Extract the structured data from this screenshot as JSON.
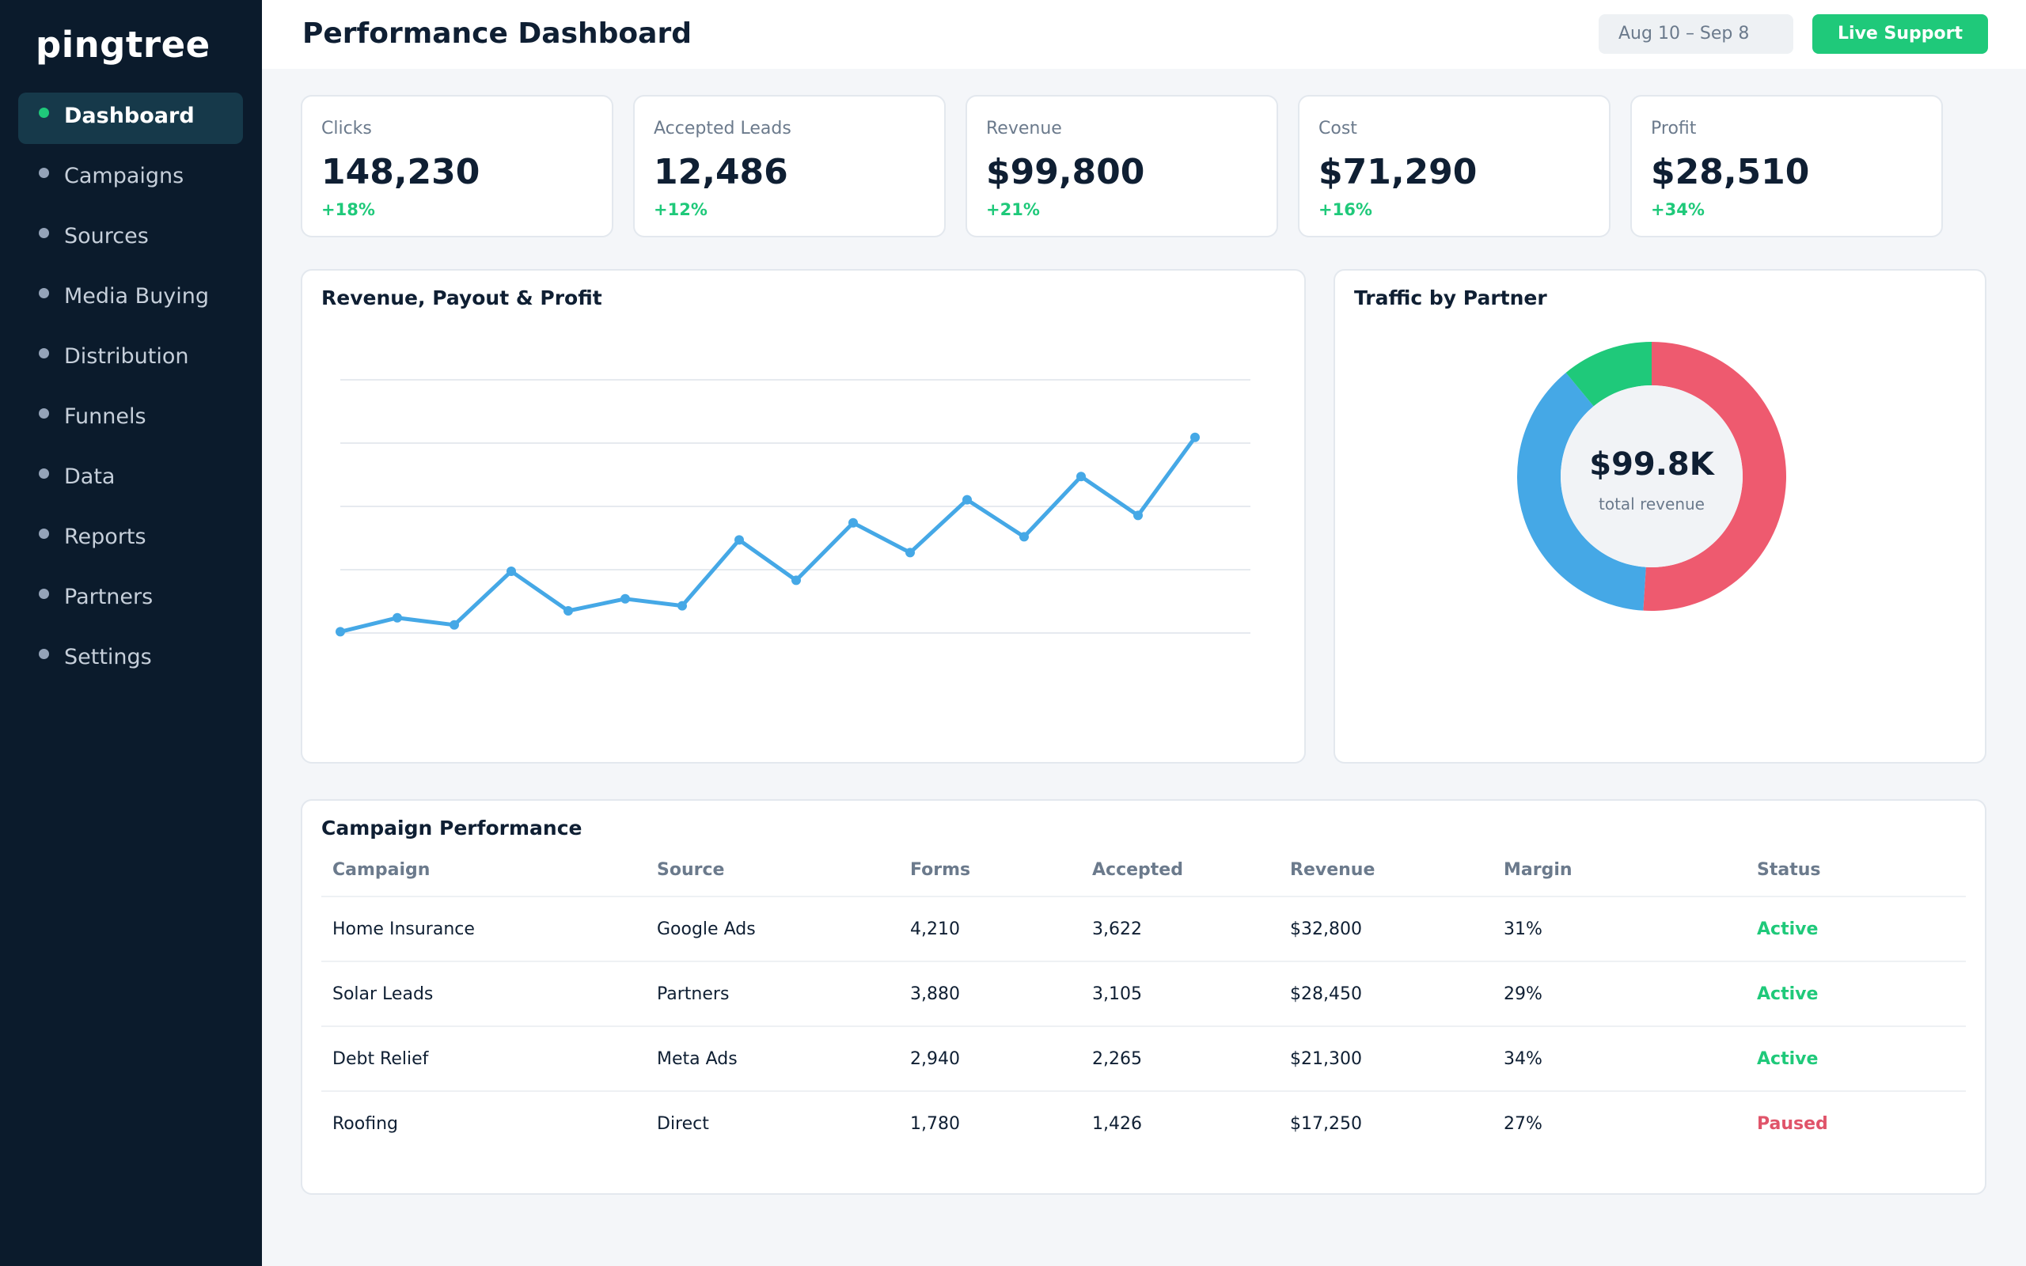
{
  "app": {
    "logo": "pingtree"
  },
  "sidebar": {
    "items": [
      {
        "label": "Dashboard",
        "active": true
      },
      {
        "label": "Campaigns"
      },
      {
        "label": "Sources"
      },
      {
        "label": "Media Buying"
      },
      {
        "label": "Distribution"
      },
      {
        "label": "Funnels"
      },
      {
        "label": "Data"
      },
      {
        "label": "Reports"
      },
      {
        "label": "Partners"
      },
      {
        "label": "Settings"
      }
    ]
  },
  "header": {
    "title": "Performance Dashboard",
    "date_range": "Aug 10 – Sep 8",
    "support_label": "Live Support"
  },
  "kpis": [
    {
      "label": "Clicks",
      "value": "148,230",
      "delta": "+18%"
    },
    {
      "label": "Accepted Leads",
      "value": "12,486",
      "delta": "+12%"
    },
    {
      "label": "Revenue",
      "value": "$99,800",
      "delta": "+21%"
    },
    {
      "label": "Cost",
      "value": "$71,290",
      "delta": "+16%"
    },
    {
      "label": "Profit",
      "value": "$28,510",
      "delta": "+34%"
    }
  ],
  "chart_data": [
    {
      "type": "line",
      "title": "Revenue, Payout & Profit",
      "x": [
        1,
        2,
        3,
        4,
        5,
        6,
        7,
        8,
        9,
        10,
        11,
        12,
        13,
        14,
        15,
        16
      ],
      "series": [
        {
          "values": [
            40.8,
            49.6,
            45.1,
            79.0,
            54.0,
            61.6,
            57.2,
            98.8,
            73.3,
            109.6,
            90.8,
            124.2,
            100.8,
            138.9,
            114.3,
            163.6
          ],
          "color": "#45a8e6"
        }
      ],
      "ylim": [
        0,
        200
      ],
      "grid": true
    },
    {
      "type": "pie",
      "title": "Traffic by Partner",
      "values": [
        51,
        38,
        11
      ],
      "colors": [
        "#ee5a6f",
        "#45a8e6",
        "#1fc97a"
      ],
      "center_value": "$99.8K",
      "center_label": "total revenue"
    }
  ],
  "table": {
    "title": "Campaign Performance",
    "columns": [
      "Campaign",
      "Source",
      "Forms",
      "Accepted",
      "Revenue",
      "Margin",
      "Status"
    ],
    "rows": [
      [
        "Home Insurance",
        "Google Ads",
        "4,210",
        "3,622",
        "$32,800",
        "31%",
        "Active"
      ],
      [
        "Solar Leads",
        "Partners",
        "3,880",
        "3,105",
        "$28,450",
        "29%",
        "Active"
      ],
      [
        "Debt Relief",
        "Meta Ads",
        "2,940",
        "2,265",
        "$21,300",
        "34%",
        "Active"
      ],
      [
        "Roofing",
        "Direct",
        "1,780",
        "1,426",
        "$17,250",
        "27%",
        "Paused"
      ]
    ],
    "status_colors": {
      "Active": "#1fc97a",
      "Paused": "#e0546a"
    }
  }
}
